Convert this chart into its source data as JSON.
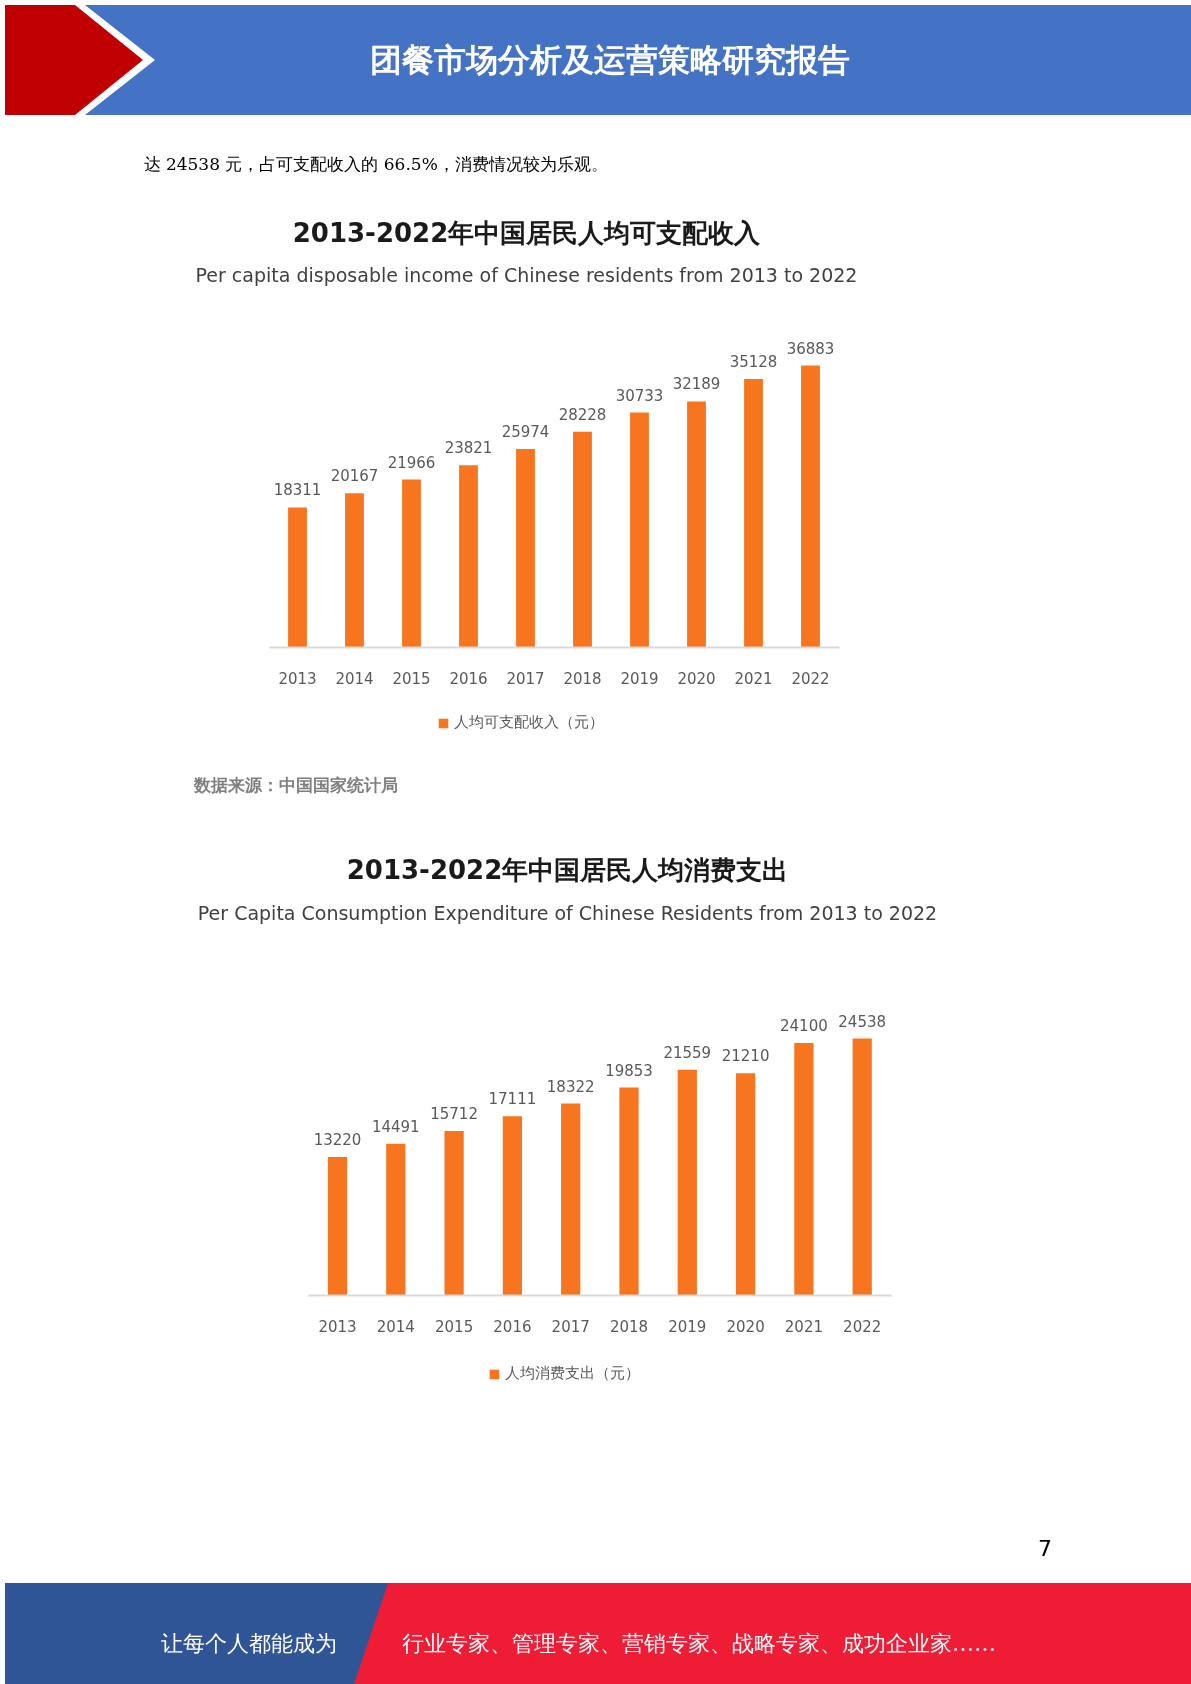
{
  "chart_data": [
    {
      "type": "bar",
      "title": "2013-2022年中国居民人均可支配收入",
      "subtitle": "Per capita disposable income of Chinese residents from 2013 to 2022",
      "categories": [
        "2013",
        "2014",
        "2015",
        "2016",
        "2017",
        "2018",
        "2019",
        "2020",
        "2021",
        "2022"
      ],
      "series": [
        {
          "name": "人均可支配收入（元）",
          "color": "#f7751f",
          "values": [
            18311,
            20167,
            21966,
            23821,
            25974,
            28228,
            30733,
            32189,
            35128,
            36883
          ]
        }
      ],
      "data_labels": true,
      "legend": "bottom",
      "annotations": [
        "团餐市场分析及运营策略研究报告",
        "达 24538 元，占可支配收入的 66.5%，消费情况较为乐观。",
        "数据来源：中国国家统计局"
      ]
    },
    {
      "type": "bar",
      "title": "2013-2022年中国居民人均消费支出",
      "subtitle": "Per Capita Consumption Expenditure of Chinese Residents from 2013 to 2022",
      "categories": [
        "2013",
        "2014",
        "2015",
        "2016",
        "2017",
        "2018",
        "2019",
        "2020",
        "2021",
        "2022"
      ],
      "series": [
        {
          "name": "人均消费支出（元）",
          "color": "#f7751f",
          "values": [
            13220,
            14491,
            15712,
            17111,
            18322,
            19853,
            21559,
            21210,
            24100,
            24538
          ]
        }
      ],
      "data_labels": true,
      "legend": "bottom",
      "annotations": [
        "7",
        "让每个人都能成为",
        "行业专家、管理专家、营销专家、战略专家、成功企业家……"
      ]
    }
  ]
}
